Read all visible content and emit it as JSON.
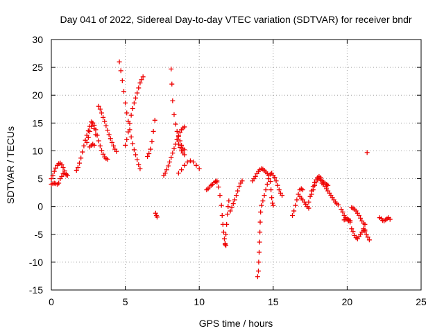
{
  "chart_data": {
    "type": "scatter",
    "title": "Day 041 of 2022, Sidereal Day-to-day VTEC variation (SDTVAR) for receiver bndr",
    "xlabel": "GPS time / hours",
    "ylabel": "SDTVAR / TECUs",
    "xlim": [
      0,
      25
    ],
    "ylim": [
      -15,
      30
    ],
    "xticks": [
      0,
      5,
      10,
      15,
      20,
      25
    ],
    "yticks": [
      -15,
      -10,
      -5,
      0,
      5,
      10,
      15,
      20,
      25,
      30
    ],
    "grid": true,
    "marker": "plus",
    "color": "#ee0000",
    "series": [
      {
        "name": "seg1",
        "x": [
          0.0,
          0.1,
          0.2,
          0.3,
          0.4,
          0.5,
          0.6,
          0.7,
          0.8,
          0.9,
          1.0,
          1.1
        ],
        "y": [
          5.0,
          5.6,
          6.3,
          6.9,
          7.4,
          7.7,
          7.8,
          7.5,
          7.0,
          6.4,
          5.8,
          5.6
        ]
      },
      {
        "name": "seg2",
        "x": [
          0.0,
          0.1,
          0.2,
          0.3,
          0.4,
          0.5
        ],
        "y": [
          4.0,
          4.1,
          4.2,
          4.1,
          4.0,
          4.2
        ]
      },
      {
        "name": "seg3",
        "x": [
          0.6,
          0.7,
          0.8,
          0.9,
          1.0
        ],
        "y": [
          5.0,
          5.4,
          5.9,
          6.0,
          5.7
        ]
      },
      {
        "name": "seg4",
        "x": [
          1.7,
          1.8,
          1.9,
          2.0,
          2.1,
          2.2,
          2.3,
          2.4,
          2.5,
          2.6,
          2.7,
          2.8,
          2.9,
          3.0
        ],
        "y": [
          6.5,
          7.0,
          7.8,
          8.7,
          9.8,
          10.9,
          11.9,
          12.8,
          13.6,
          14.4,
          15.2,
          15.0,
          14.0,
          12.9
        ]
      },
      {
        "name": "seg5",
        "x": [
          2.6,
          2.7,
          2.8,
          2.9
        ],
        "y": [
          10.7,
          11.0,
          11.2,
          11.0
        ]
      },
      {
        "name": "seg6",
        "x": [
          2.4,
          2.5,
          2.6,
          2.7,
          2.8,
          2.9,
          3.0,
          3.1,
          3.2,
          3.3,
          3.4,
          3.5,
          3.6,
          3.7,
          3.8
        ],
        "y": [
          11.5,
          12.4,
          13.5,
          14.4,
          15.0,
          14.6,
          13.8,
          12.8,
          11.8,
          10.9,
          10.1,
          9.4,
          8.9,
          8.6,
          8.5
        ]
      },
      {
        "name": "seg7",
        "x": [
          3.2,
          3.3,
          3.4,
          3.5,
          3.6,
          3.7,
          3.8,
          3.9,
          4.0,
          4.1,
          4.2,
          4.3,
          4.4
        ],
        "y": [
          18.0,
          17.5,
          16.8,
          16.0,
          15.3,
          14.5,
          13.7,
          12.9,
          12.2,
          11.5,
          10.9,
          10.3,
          9.9
        ]
      },
      {
        "name": "seg8",
        "x": [
          4.6,
          4.7,
          4.8,
          4.9,
          5.0,
          5.1,
          5.2,
          5.3,
          5.4,
          5.5,
          5.6,
          5.7,
          5.8,
          5.9,
          6.0
        ],
        "y": [
          26.0,
          24.4,
          22.6,
          20.7,
          18.6,
          16.8,
          15.3,
          13.8,
          12.5,
          11.3,
          10.2,
          9.3,
          8.4,
          7.5,
          6.8
        ]
      },
      {
        "name": "seg9",
        "x": [
          5.0,
          5.1,
          5.2,
          5.3,
          5.4,
          5.5,
          5.6,
          5.7,
          5.8,
          5.9,
          6.0,
          6.1,
          6.2
        ],
        "y": [
          11.0,
          12.0,
          13.4,
          14.9,
          16.4,
          17.6,
          18.6,
          19.5,
          20.4,
          21.3,
          22.2,
          22.8,
          23.3
        ]
      },
      {
        "name": "seg10",
        "x": [
          6.5,
          6.6,
          6.7,
          6.8,
          6.9,
          7.0
        ],
        "y": [
          9.0,
          9.5,
          10.3,
          11.7,
          13.5,
          15.5
        ]
      },
      {
        "name": "seg11",
        "x": [
          7.05,
          7.1,
          7.15
        ],
        "y": [
          -1.2,
          -1.6,
          -1.9
        ]
      },
      {
        "name": "seg12",
        "x": [
          8.1,
          8.15,
          8.2,
          8.3,
          8.4,
          8.5,
          8.6,
          8.7,
          8.8,
          8.9,
          9.0
        ],
        "y": [
          24.7,
          22.0,
          19.0,
          16.5,
          14.8,
          13.5,
          12.6,
          11.8,
          11.0,
          10.4,
          10.2
        ]
      },
      {
        "name": "seg13",
        "x": [
          7.6,
          7.7,
          7.8,
          7.9,
          8.0,
          8.1,
          8.2,
          8.3,
          8.4,
          8.5,
          8.6,
          8.7,
          8.8,
          8.9,
          9.0
        ],
        "y": [
          5.6,
          6.0,
          6.6,
          7.3,
          8.0,
          8.8,
          9.6,
          10.4,
          11.2,
          12.0,
          12.7,
          13.3,
          13.8,
          14.1,
          14.3
        ]
      },
      {
        "name": "seg14",
        "x": [
          8.5,
          8.6,
          8.7,
          8.8,
          8.9,
          9.0
        ],
        "y": [
          12.0,
          11.2,
          10.6,
          10.0,
          9.6,
          9.3
        ]
      },
      {
        "name": "seg15",
        "x": [
          8.6,
          8.8,
          9.0,
          9.2,
          9.4,
          9.6,
          9.8,
          10.0
        ],
        "y": [
          6.0,
          6.6,
          7.4,
          8.0,
          8.2,
          8.0,
          7.4,
          6.8
        ]
      },
      {
        "name": "seg16",
        "x": [
          10.5,
          10.6,
          10.7,
          10.8,
          10.9,
          11.0,
          11.1,
          11.2
        ],
        "y": [
          3.0,
          3.2,
          3.5,
          3.8,
          4.0,
          4.3,
          4.5,
          4.6
        ]
      },
      {
        "name": "seg17",
        "x": [
          11.2,
          11.3,
          11.4,
          11.5,
          11.55,
          11.6,
          11.65,
          11.7,
          11.75,
          11.8
        ],
        "y": [
          4.4,
          3.5,
          2.0,
          0.2,
          -1.6,
          -3.2,
          -4.6,
          -5.8,
          -6.6,
          -7.0
        ]
      },
      {
        "name": "seg18",
        "x": [
          11.75,
          11.8,
          11.85,
          11.9,
          11.95,
          12.0
        ],
        "y": [
          -6.8,
          -5.0,
          -3.2,
          -1.4,
          0.0,
          1.0
        ]
      },
      {
        "name": "seg19",
        "x": [
          12.1,
          12.2,
          12.3,
          12.4,
          12.5,
          12.6,
          12.7,
          12.8,
          12.9
        ],
        "y": [
          -0.8,
          -0.2,
          0.5,
          1.2,
          2.0,
          2.8,
          3.6,
          4.2,
          4.6
        ]
      },
      {
        "name": "seg20",
        "x": [
          13.6,
          13.7,
          13.8,
          13.9,
          14.0,
          14.1,
          14.2,
          14.3,
          14.4,
          14.5,
          14.6,
          14.7
        ],
        "y": [
          4.6,
          5.0,
          5.4,
          5.9,
          6.3,
          6.6,
          6.8,
          6.7,
          6.5,
          6.2,
          5.9,
          5.6
        ]
      },
      {
        "name": "seg21",
        "x": [
          13.95,
          14.0,
          14.02,
          14.05,
          14.08,
          14.1,
          14.12,
          14.15
        ],
        "y": [
          -12.6,
          -11.6,
          -10.0,
          -8.2,
          -6.4,
          -4.6,
          -2.8,
          -1.0
        ]
      },
      {
        "name": "seg22",
        "x": [
          14.2,
          14.3,
          14.4,
          14.5,
          14.6,
          14.7,
          14.8,
          14.9,
          15.0,
          15.1
        ],
        "y": [
          0.2,
          1.0,
          2.0,
          3.0,
          4.0,
          5.0,
          5.8,
          6.0,
          5.6,
          5.2
        ]
      },
      {
        "name": "seg23",
        "x": [
          14.8,
          14.85,
          14.9,
          14.95,
          15.0
        ],
        "y": [
          4.5,
          3.0,
          1.6,
          0.6,
          0.2
        ]
      },
      {
        "name": "seg24",
        "x": [
          15.1,
          15.2,
          15.3,
          15.4,
          15.5,
          15.6
        ],
        "y": [
          5.2,
          4.6,
          3.8,
          3.0,
          2.4,
          2.0
        ]
      },
      {
        "name": "seg25",
        "x": [
          16.3,
          16.4,
          16.5,
          16.6,
          16.7,
          16.8,
          16.9,
          17.0
        ],
        "y": [
          -1.6,
          -0.8,
          0.2,
          1.2,
          2.2,
          3.0,
          3.2,
          3.0
        ]
      },
      {
        "name": "seg26",
        "x": [
          16.8,
          16.9,
          17.0,
          17.1,
          17.2,
          17.3,
          17.4
        ],
        "y": [
          1.8,
          1.5,
          1.2,
          0.8,
          0.4,
          0.0,
          -0.3
        ]
      },
      {
        "name": "seg27",
        "x": [
          17.3,
          17.4,
          17.5,
          17.6,
          17.7,
          17.8,
          17.9,
          18.0,
          18.1,
          18.2
        ],
        "y": [
          0.0,
          0.8,
          1.8,
          2.8,
          3.6,
          4.3,
          4.8,
          5.2,
          5.4,
          5.2
        ]
      },
      {
        "name": "seg28",
        "x": [
          17.6,
          17.7,
          17.8,
          17.9,
          18.0,
          18.1,
          18.2,
          18.3,
          18.4,
          18.5,
          18.6,
          18.7
        ],
        "y": [
          2.2,
          3.0,
          3.8,
          4.4,
          4.8,
          5.0,
          4.8,
          4.6,
          4.4,
          4.2,
          4.0,
          3.8
        ]
      },
      {
        "name": "seg29",
        "x": [
          18.3,
          18.4,
          18.5,
          18.6,
          18.7,
          18.8,
          18.9,
          19.0,
          19.1,
          19.2,
          19.3,
          19.4
        ],
        "y": [
          4.2,
          4.0,
          3.6,
          3.2,
          2.8,
          2.4,
          2.0,
          1.6,
          1.2,
          0.8,
          0.5,
          0.3
        ]
      },
      {
        "name": "seg30",
        "x": [
          19.6,
          19.7,
          19.8,
          19.9,
          20.0,
          20.1,
          20.2
        ],
        "y": [
          -0.5,
          -1.0,
          -1.6,
          -2.0,
          -2.3,
          -2.6,
          -2.8
        ]
      },
      {
        "name": "seg31",
        "x": [
          19.8,
          19.9,
          20.0,
          20.1,
          20.2
        ],
        "y": [
          -2.4,
          -2.3,
          -2.2,
          -2.4,
          -2.5
        ]
      },
      {
        "name": "seg32",
        "x": [
          20.3,
          20.4,
          20.5,
          20.6,
          20.7,
          20.8,
          20.9,
          21.0,
          21.1,
          21.2
        ],
        "y": [
          -0.2,
          -0.3,
          -0.5,
          -0.8,
          -1.2,
          -1.6,
          -2.1,
          -2.6,
          -3.0,
          -3.2
        ]
      },
      {
        "name": "seg33",
        "x": [
          20.3,
          20.4,
          20.5,
          20.6,
          20.7,
          20.8,
          20.9,
          21.0,
          21.1,
          21.2
        ],
        "y": [
          -4.0,
          -4.5,
          -5.2,
          -5.6,
          -5.8,
          -5.4,
          -5.0,
          -4.6,
          -4.3,
          -4.2
        ]
      },
      {
        "name": "seg34",
        "x": [
          21.1,
          21.2,
          21.3,
          21.4,
          21.5
        ],
        "y": [
          -4.0,
          -4.4,
          -5.0,
          -5.5,
          -6.0
        ]
      },
      {
        "name": "seg35",
        "x": [
          21.35
        ],
        "y": [
          9.7
        ]
      },
      {
        "name": "seg36",
        "x": [
          22.2,
          22.3,
          22.4,
          22.5,
          22.6,
          22.7,
          22.8,
          22.9
        ],
        "y": [
          -2.0,
          -2.2,
          -2.5,
          -2.6,
          -2.4,
          -2.2,
          -2.0,
          -2.3
        ]
      }
    ]
  }
}
